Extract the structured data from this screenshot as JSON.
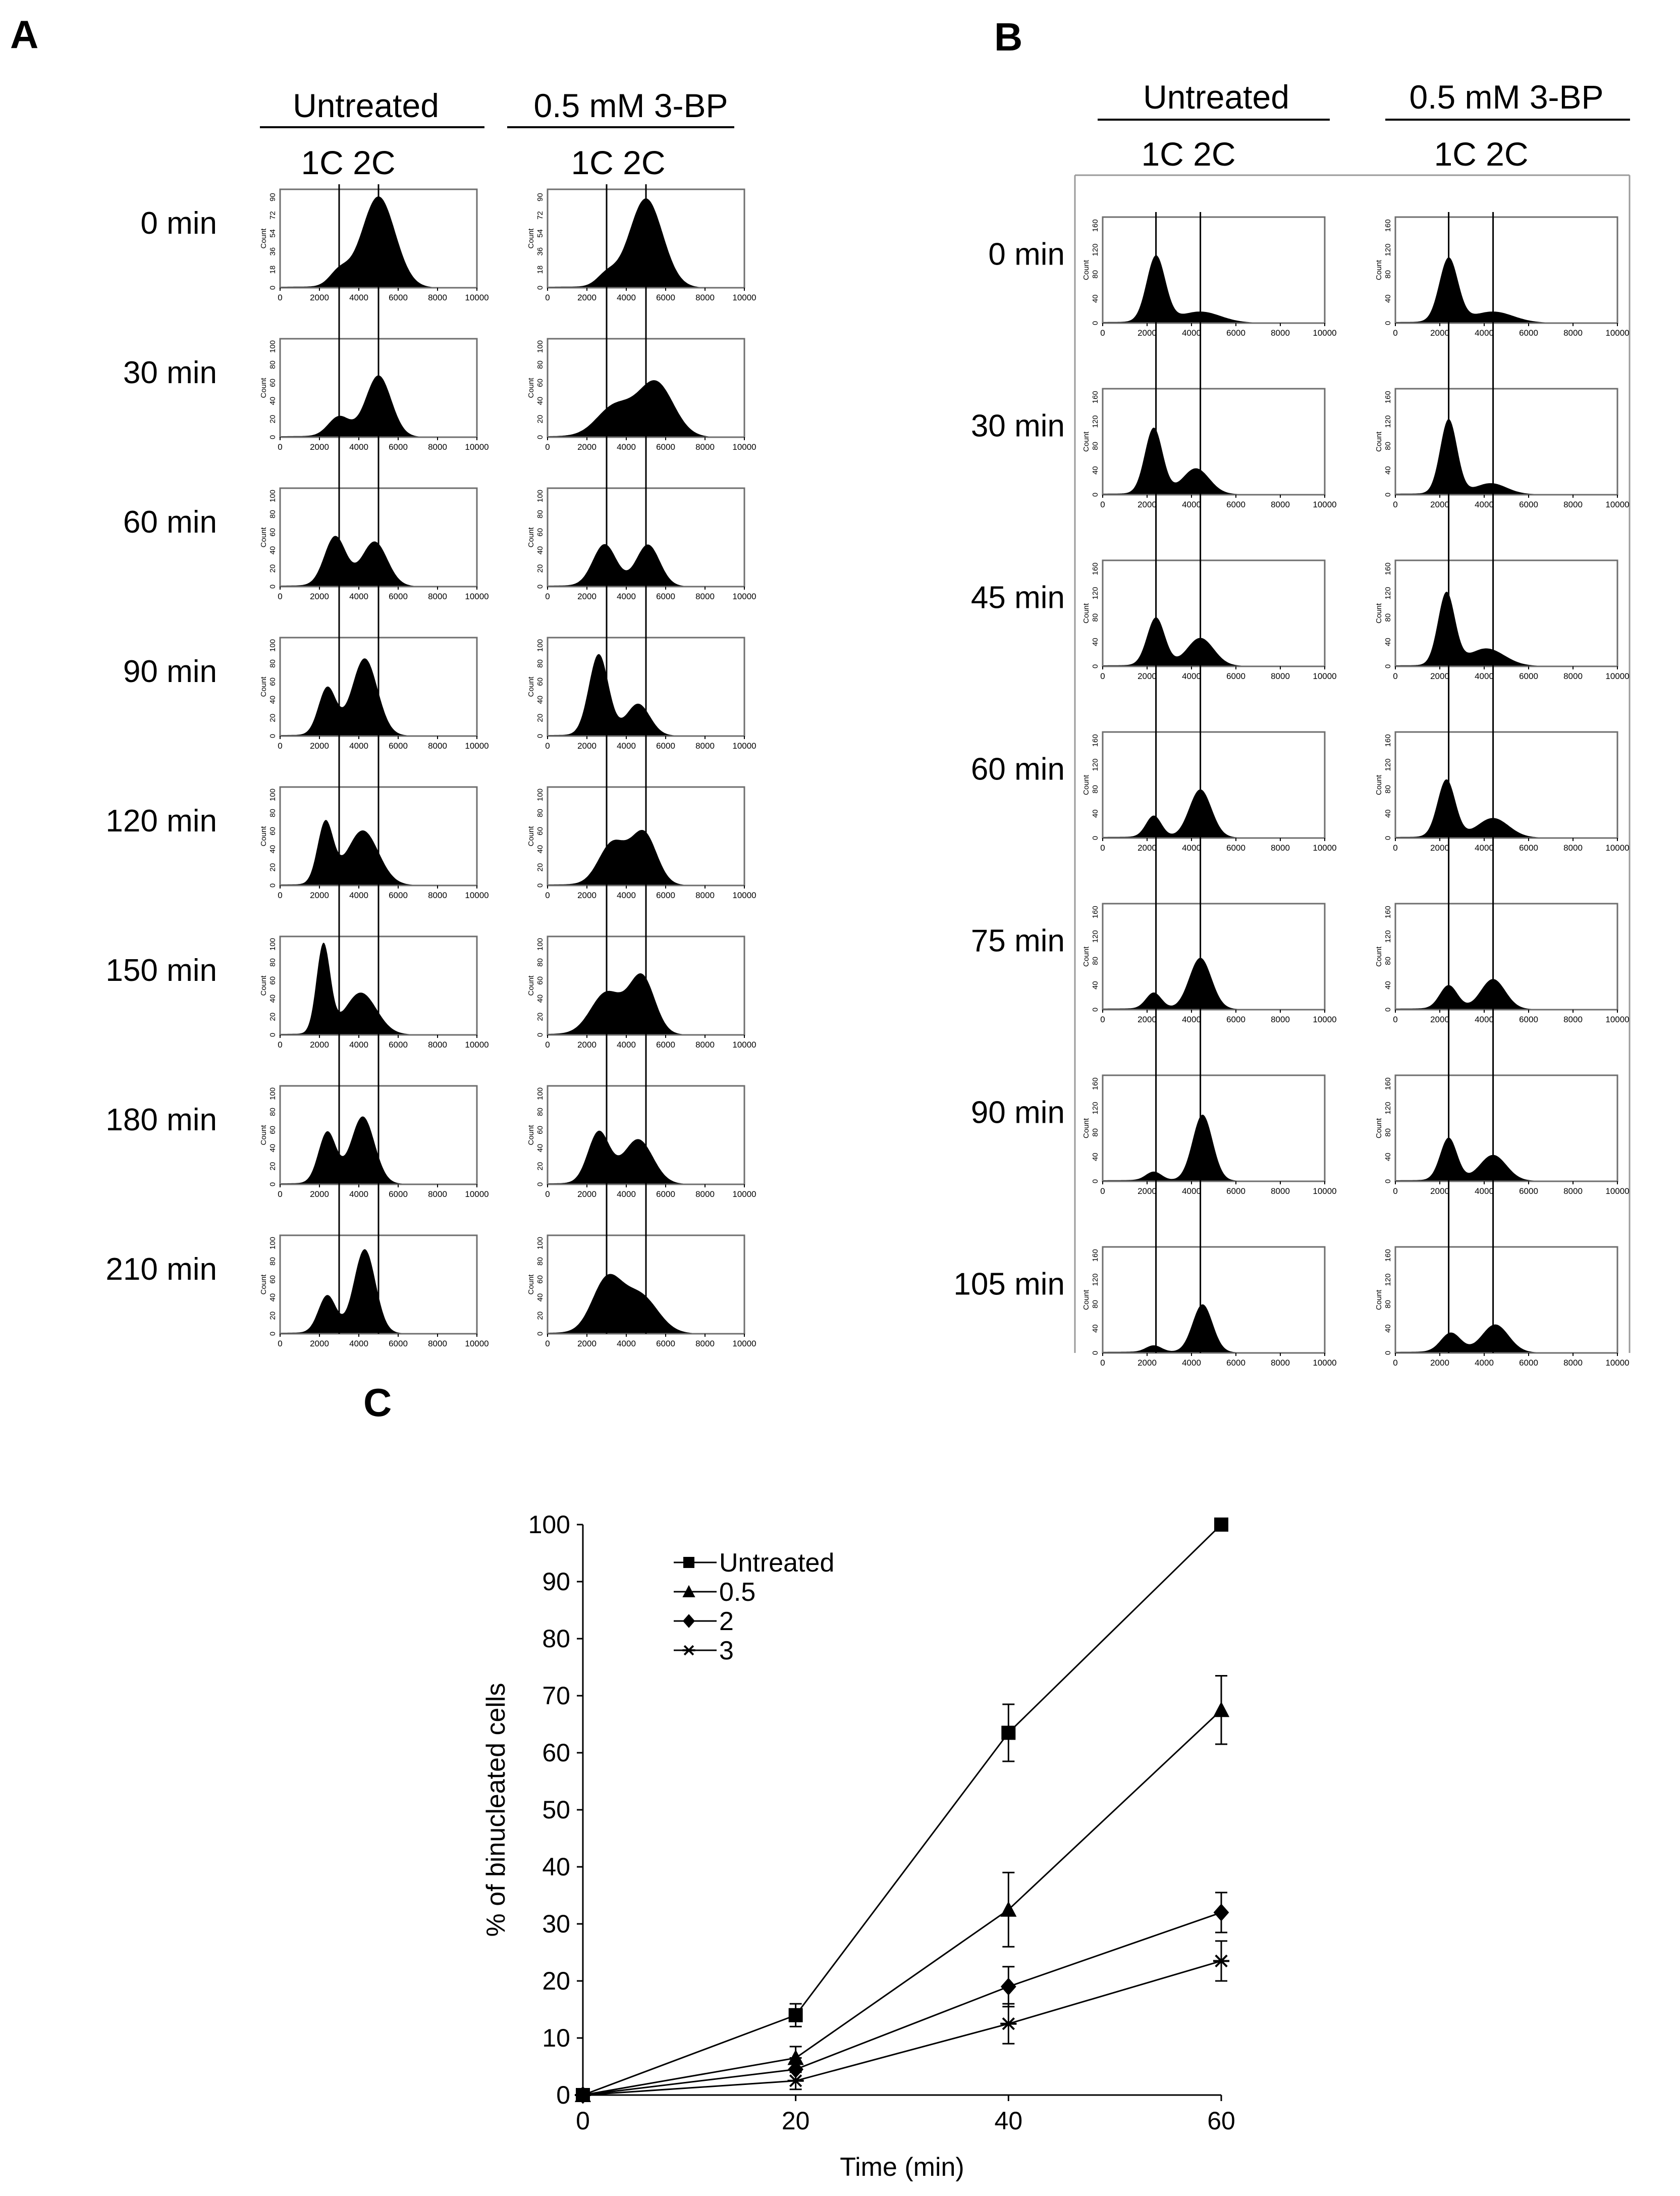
{
  "chart_data": [
    {
      "type": "histogram-grid",
      "panel_label": "A",
      "columns": [
        "Untreated",
        "0.5 mM 3-BP"
      ],
      "subheader": "1C 2C",
      "rows": [
        "0 min",
        "30 min",
        "60 min",
        "90 min",
        "120 min",
        "150 min",
        "180 min",
        "210 min"
      ],
      "y_axis_label": "Count",
      "x_range": [
        0,
        10000
      ],
      "x_ticks": [
        "0",
        "2000",
        "4000",
        "6000",
        "8000",
        "10000"
      ],
      "y_ticks": [
        [
          "0",
          "18",
          "36",
          "54",
          "72",
          "90"
        ],
        [
          "0",
          "20",
          "40",
          "60",
          "80",
          "100"
        ],
        [
          "0",
          "20",
          "40",
          "60",
          "80",
          "100"
        ],
        [
          "0",
          "20",
          "40",
          "60",
          "80",
          "100"
        ],
        [
          "0",
          "20",
          "40",
          "60",
          "80",
          "100"
        ],
        [
          "0",
          "20",
          "40",
          "60",
          "80",
          "100"
        ],
        [
          "0",
          "20",
          "40",
          "60",
          "80",
          "100"
        ],
        [
          "0",
          "20",
          "40",
          "60",
          "80",
          "100"
        ]
      ],
      "marker_positions": [
        3000,
        5000
      ],
      "profiles": [
        [
          {
            "peak1": {
              "mean": 3000,
              "sd": 500,
              "height": 0.15
            },
            "peak2": {
              "mean": 5000,
              "sd": 850,
              "height": 0.92
            }
          },
          {
            "peak1": {
              "mean": 3000,
              "sd": 500,
              "height": 0.12
            },
            "peak2": {
              "mean": 5000,
              "sd": 850,
              "height": 0.9
            }
          }
        ],
        [
          {
            "peak1": {
              "mean": 3000,
              "sd": 550,
              "height": 0.2
            },
            "peak2": {
              "mean": 5000,
              "sd": 650,
              "height": 0.62
            }
          },
          {
            "peak1": {
              "mean": 3400,
              "sd": 900,
              "height": 0.3
            },
            "peak2": {
              "mean": 5500,
              "sd": 900,
              "height": 0.55
            }
          }
        ],
        [
          {
            "peak1": {
              "mean": 2800,
              "sd": 550,
              "height": 0.5
            },
            "peak2": {
              "mean": 4800,
              "sd": 650,
              "height": 0.45
            }
          },
          {
            "peak1": {
              "mean": 2900,
              "sd": 600,
              "height": 0.42
            },
            "peak2": {
              "mean": 5100,
              "sd": 600,
              "height": 0.42
            }
          }
        ],
        [
          {
            "peak1": {
              "mean": 2400,
              "sd": 450,
              "height": 0.48
            },
            "peak2": {
              "mean": 4300,
              "sd": 650,
              "height": 0.78
            }
          },
          {
            "peak1": {
              "mean": 2600,
              "sd": 500,
              "height": 0.82
            },
            "peak2": {
              "mean": 4600,
              "sd": 600,
              "height": 0.32
            }
          }
        ],
        [
          {
            "peak1": {
              "mean": 2300,
              "sd": 400,
              "height": 0.62
            },
            "peak2": {
              "mean": 4200,
              "sd": 800,
              "height": 0.55
            }
          },
          {
            "peak1": {
              "mean": 3300,
              "sd": 700,
              "height": 0.42
            },
            "peak2": {
              "mean": 4900,
              "sd": 650,
              "height": 0.52
            }
          }
        ],
        [
          {
            "peak1": {
              "mean": 2200,
              "sd": 350,
              "height": 0.9
            },
            "peak2": {
              "mean": 4100,
              "sd": 800,
              "height": 0.42
            }
          },
          {
            "peak1": {
              "mean": 3000,
              "sd": 800,
              "height": 0.42
            },
            "peak2": {
              "mean": 4800,
              "sd": 650,
              "height": 0.58
            }
          }
        ],
        [
          {
            "peak1": {
              "mean": 2400,
              "sd": 450,
              "height": 0.52
            },
            "peak2": {
              "mean": 4200,
              "sd": 600,
              "height": 0.68
            }
          },
          {
            "peak1": {
              "mean": 2600,
              "sd": 550,
              "height": 0.52
            },
            "peak2": {
              "mean": 4600,
              "sd": 750,
              "height": 0.45
            }
          }
        ],
        [
          {
            "peak1": {
              "mean": 2400,
              "sd": 450,
              "height": 0.38
            },
            "peak2": {
              "mean": 4300,
              "sd": 550,
              "height": 0.85
            }
          },
          {
            "peak1": {
              "mean": 3000,
              "sd": 750,
              "height": 0.52
            },
            "peak2": {
              "mean": 4700,
              "sd": 900,
              "height": 0.38
            }
          }
        ]
      ]
    },
    {
      "type": "histogram-grid",
      "panel_label": "B",
      "columns": [
        "Untreated",
        "0.5 mM 3-BP"
      ],
      "subheader": "1C 2C",
      "rows": [
        "0 min",
        "30 min",
        "45 min",
        "60 min",
        "75 min",
        "90 min",
        "105 min"
      ],
      "y_axis_label": "Count",
      "x_range": [
        0,
        10000
      ],
      "x_ticks": [
        "0",
        "2000",
        "4000",
        "6000",
        "8000",
        "10000"
      ],
      "y_ticks": [
        "0",
        "40",
        "80",
        "120",
        "160"
      ],
      "marker_positions": [
        2400,
        4400
      ],
      "profiles": [
        [
          {
            "peak1": {
              "mean": 2400,
              "sd": 420,
              "height": 0.62
            },
            "peak2": {
              "mean": 4400,
              "sd": 900,
              "height": 0.1
            }
          },
          {
            "peak1": {
              "mean": 2400,
              "sd": 420,
              "height": 0.6
            },
            "peak2": {
              "mean": 4400,
              "sd": 900,
              "height": 0.1
            }
          }
        ],
        [
          {
            "peak1": {
              "mean": 2300,
              "sd": 400,
              "height": 0.62
            },
            "peak2": {
              "mean": 4200,
              "sd": 600,
              "height": 0.24
            }
          },
          {
            "peak1": {
              "mean": 2400,
              "sd": 380,
              "height": 0.7
            },
            "peak2": {
              "mean": 4300,
              "sd": 700,
              "height": 0.1
            }
          }
        ],
        [
          {
            "peak1": {
              "mean": 2400,
              "sd": 400,
              "height": 0.45
            },
            "peak2": {
              "mean": 4400,
              "sd": 600,
              "height": 0.26
            }
          },
          {
            "peak1": {
              "mean": 2300,
              "sd": 380,
              "height": 0.68
            },
            "peak2": {
              "mean": 4100,
              "sd": 800,
              "height": 0.16
            }
          }
        ],
        [
          {
            "peak1": {
              "mean": 2300,
              "sd": 350,
              "height": 0.2
            },
            "peak2": {
              "mean": 4400,
              "sd": 500,
              "height": 0.45
            }
          },
          {
            "peak1": {
              "mean": 2300,
              "sd": 400,
              "height": 0.54
            },
            "peak2": {
              "mean": 4400,
              "sd": 700,
              "height": 0.18
            }
          }
        ],
        [
          {
            "peak1": {
              "mean": 2300,
              "sd": 350,
              "height": 0.15
            },
            "peak2": {
              "mean": 4400,
              "sd": 500,
              "height": 0.48
            }
          },
          {
            "peak1": {
              "mean": 2400,
              "sd": 400,
              "height": 0.22
            },
            "peak2": {
              "mean": 4400,
              "sd": 550,
              "height": 0.28
            }
          }
        ],
        [
          {
            "peak1": {
              "mean": 2300,
              "sd": 350,
              "height": 0.08
            },
            "peak2": {
              "mean": 4500,
              "sd": 450,
              "height": 0.62
            }
          },
          {
            "peak1": {
              "mean": 2400,
              "sd": 380,
              "height": 0.4
            },
            "peak2": {
              "mean": 4400,
              "sd": 600,
              "height": 0.24
            }
          }
        ],
        [
          {
            "peak1": {
              "mean": 2300,
              "sd": 350,
              "height": 0.06
            },
            "peak2": {
              "mean": 4500,
              "sd": 450,
              "height": 0.45
            }
          },
          {
            "peak1": {
              "mean": 2500,
              "sd": 450,
              "height": 0.18
            },
            "peak2": {
              "mean": 4500,
              "sd": 600,
              "height": 0.26
            }
          }
        ]
      ]
    },
    {
      "type": "line",
      "panel_label": "C",
      "xlabel": "Time (min)",
      "ylabel": "% of binucleated cells",
      "xlim": [
        0,
        60
      ],
      "ylim": [
        0,
        100
      ],
      "x_ticks": [
        0,
        20,
        40,
        60
      ],
      "y_ticks": [
        0,
        10,
        20,
        30,
        40,
        50,
        60,
        70,
        80,
        90,
        100
      ],
      "x": [
        0,
        20,
        40,
        60
      ],
      "series": [
        {
          "name": "Untreated",
          "marker": "square",
          "values": [
            0,
            14,
            63.5,
            100
          ],
          "errors": [
            0,
            2,
            5,
            0
          ]
        },
        {
          "name": "0.5",
          "marker": "triangle",
          "values": [
            0,
            6.5,
            32.5,
            67.5
          ],
          "errors": [
            0,
            2,
            6.5,
            6
          ]
        },
        {
          "name": "2",
          "marker": "diamond",
          "values": [
            0,
            4.5,
            19,
            32
          ],
          "errors": [
            0,
            2,
            3.5,
            3.5
          ]
        },
        {
          "name": "3",
          "marker": "asterisk",
          "values": [
            0,
            2.5,
            12.5,
            23.5
          ],
          "errors": [
            0,
            1.5,
            3.5,
            3.5
          ]
        }
      ]
    }
  ]
}
